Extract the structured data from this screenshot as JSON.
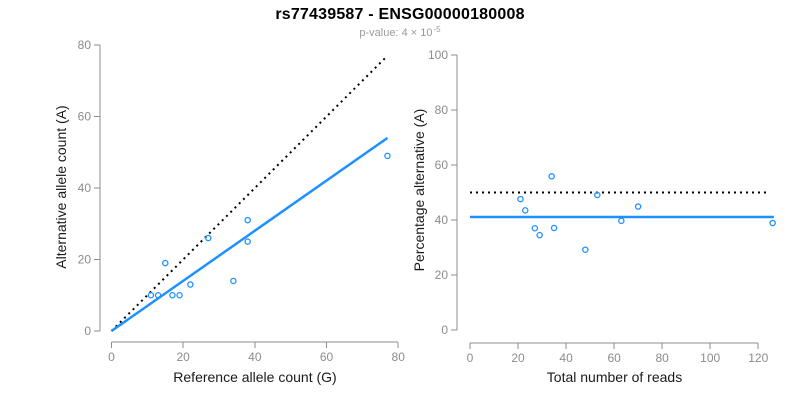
{
  "header": {
    "title": "rs77439587 - ENSG00000180008",
    "pvalue_prefix": "p-value: 4 × 10",
    "pvalue_exponent": "-5"
  },
  "colors": {
    "blue": "#1E90FF",
    "black": "#000000",
    "axis": "#8c8c8c",
    "tick_label": "#8c8c8c",
    "axis_title": "#1a1a1a",
    "subtitle": "#9a9a9a"
  },
  "chart_data": [
    {
      "type": "scatter",
      "name": "allele-counts",
      "xlabel": "Reference allele count (G)",
      "ylabel": "Alternative allele count (A)",
      "xlim": [
        0,
        80
      ],
      "ylim": [
        0,
        80
      ],
      "xticks": [
        0,
        20,
        40,
        60,
        80
      ],
      "yticks": [
        0,
        20,
        40,
        60,
        80
      ],
      "grid": false,
      "legend": "none",
      "points": [
        [
          11,
          10
        ],
        [
          13,
          10
        ],
        [
          15,
          19
        ],
        [
          17,
          10
        ],
        [
          19,
          10
        ],
        [
          22,
          13
        ],
        [
          27,
          26
        ],
        [
          34,
          14
        ],
        [
          38,
          25
        ],
        [
          38,
          31
        ],
        [
          77,
          49
        ]
      ],
      "lines": [
        {
          "name": "identity-line",
          "style": "dotted",
          "color": "black",
          "x1": 0,
          "y1": 0,
          "x2": 77,
          "y2": 77
        },
        {
          "name": "fit-line",
          "style": "solid",
          "color": "blue",
          "x1": 0,
          "y1": 0,
          "x2": 77,
          "y2": 54
        }
      ]
    },
    {
      "type": "scatter",
      "name": "percentage-vs-reads",
      "xlabel": "Total number of reads",
      "ylabel": "Percentage alternative (A)",
      "xlim": [
        0,
        126
      ],
      "ylim": [
        0,
        100
      ],
      "xticks": [
        0,
        20,
        40,
        60,
        80,
        100,
        120
      ],
      "yticks": [
        0,
        20,
        40,
        60,
        80,
        100
      ],
      "grid": false,
      "legend": "none",
      "points": [
        [
          21,
          47.6
        ],
        [
          23,
          43.5
        ],
        [
          27,
          37.0
        ],
        [
          29,
          34.5
        ],
        [
          34,
          55.9
        ],
        [
          35,
          37.1
        ],
        [
          48,
          29.2
        ],
        [
          53,
          49.1
        ],
        [
          63,
          39.7
        ],
        [
          70,
          44.9
        ],
        [
          126,
          38.9
        ]
      ],
      "lines": [
        {
          "name": "fifty-percent-line",
          "style": "dotted",
          "color": "black",
          "x1": 0,
          "y1": 50,
          "x2": 124,
          "y2": 50
        },
        {
          "name": "mean-line",
          "style": "solid",
          "color": "blue",
          "x1": 0,
          "y1": 41.1,
          "x2": 126.5,
          "y2": 41.1
        }
      ]
    }
  ]
}
